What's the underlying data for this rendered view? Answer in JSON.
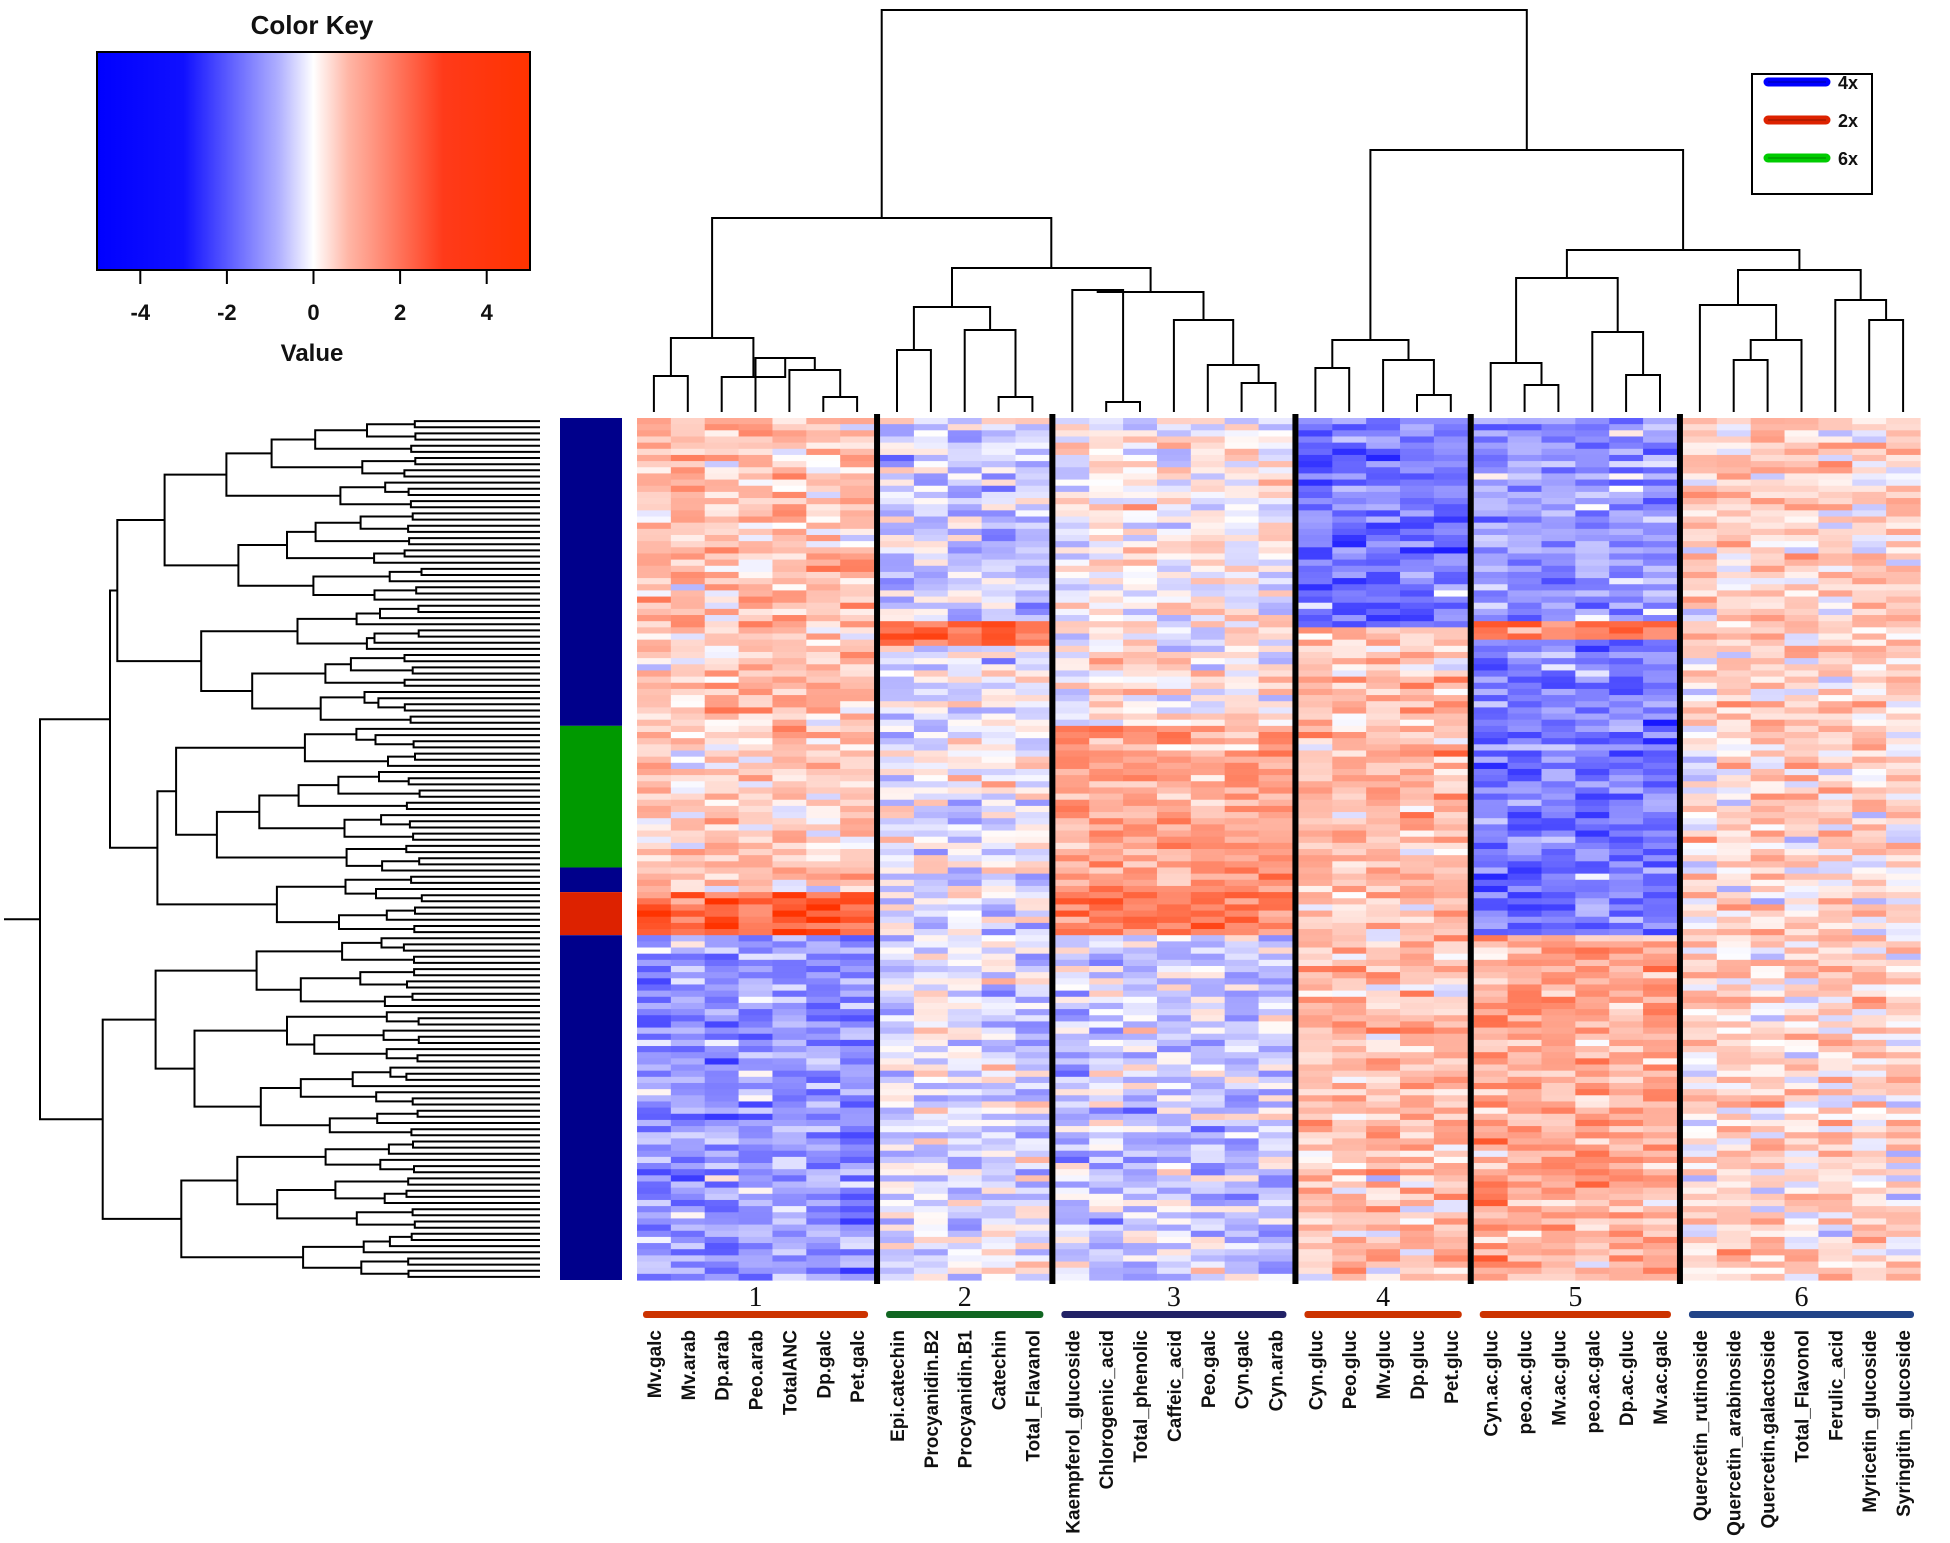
{
  "chart_data": {
    "type": "heatmap",
    "title": "",
    "color_key": {
      "title": "Color Key",
      "xlabel": "Value",
      "ticks": [
        "-4",
        "-2",
        "0",
        "2",
        "4"
      ],
      "range": [
        -5,
        5
      ],
      "low_color": "#0000ff",
      "mid_color": "#ffffff",
      "high_color": "#ff3300"
    },
    "legend": {
      "position": "top-right",
      "entries": [
        {
          "label": "4x",
          "color": "#0000ff"
        },
        {
          "label": "2x",
          "color": "#dd2200"
        },
        {
          "label": "6x",
          "color": "#00cc00"
        }
      ]
    },
    "row_count": 140,
    "row_annotation": [
      {
        "group": "4x",
        "from_row": 0,
        "to_row": 50,
        "color": "#00008b"
      },
      {
        "group": "6x",
        "from_row": 50,
        "to_row": 73,
        "color": "#009900"
      },
      {
        "group": "4x",
        "from_row": 73,
        "to_row": 77,
        "color": "#00008b"
      },
      {
        "group": "2x",
        "from_row": 77,
        "to_row": 84,
        "color": "#dd2200"
      },
      {
        "group": "4x",
        "from_row": 84,
        "to_row": 140,
        "color": "#00008b"
      }
    ],
    "clusters": [
      {
        "id": "1",
        "color": "#cc3300",
        "columns": [
          "Mv.galc",
          "Mv.arab",
          "Dp.arab",
          "Peo.arab",
          "TotalANC",
          "Dp.galc",
          "Pet.galc"
        ],
        "pattern": [
          [
            0,
            50,
            0.9
          ],
          [
            50,
            77,
            0.7
          ],
          [
            77,
            84,
            3.0
          ],
          [
            84,
            140,
            -1.4
          ]
        ]
      },
      {
        "id": "2",
        "color": "#116622",
        "columns": [
          "Epi.catechin",
          "Procyanidin.B2",
          "Procyanidin.B1",
          "Catechin",
          "Total_Flavanol"
        ],
        "pattern": [
          [
            0,
            33,
            -0.6
          ],
          [
            33,
            37,
            2.8
          ],
          [
            37,
            140,
            -0.2
          ]
        ]
      },
      {
        "id": "3",
        "color": "#222266",
        "columns": [
          "Kaempferol_glucoside",
          "Chlorogenic_acid",
          "Total_phenolic",
          "Caffeic_acid",
          "Peo.galc",
          "Cyn.galc",
          "Cyn.arab"
        ],
        "pattern": [
          [
            0,
            50,
            0.2
          ],
          [
            50,
            77,
            1.5
          ],
          [
            77,
            84,
            2.4
          ],
          [
            84,
            140,
            -0.6
          ]
        ]
      },
      {
        "id": "4",
        "color": "#cc3300",
        "columns": [
          "Cyn.gluc",
          "Peo.gluc",
          "Mv.gluc",
          "Dp.gluc",
          "Pet.gluc"
        ],
        "pattern": [
          [
            0,
            34,
            -2.0
          ],
          [
            34,
            140,
            1.0
          ]
        ]
      },
      {
        "id": "5",
        "color": "#cc3300",
        "columns": [
          "Cyn.ac.gluc",
          "peo.ac.gluc",
          "Mv.ac.gluc",
          "peo.ac.galc",
          "Dp.ac.gluc",
          "Mv.ac.galc"
        ],
        "pattern": [
          [
            0,
            33,
            -1.3
          ],
          [
            33,
            36,
            2.6
          ],
          [
            36,
            84,
            -1.8
          ],
          [
            84,
            140,
            1.4
          ]
        ]
      },
      {
        "id": "6",
        "color": "#224488",
        "columns": [
          "Quercetin_rutinoside",
          "Quercetin_arabinoside",
          "Quercetin.galactoside",
          "Total_Flavonol",
          "Ferulic_acid",
          "Myricetin_glucoside",
          "Syringitin_glucoside"
        ],
        "pattern": [
          [
            0,
            140,
            0.6
          ]
        ]
      }
    ]
  }
}
